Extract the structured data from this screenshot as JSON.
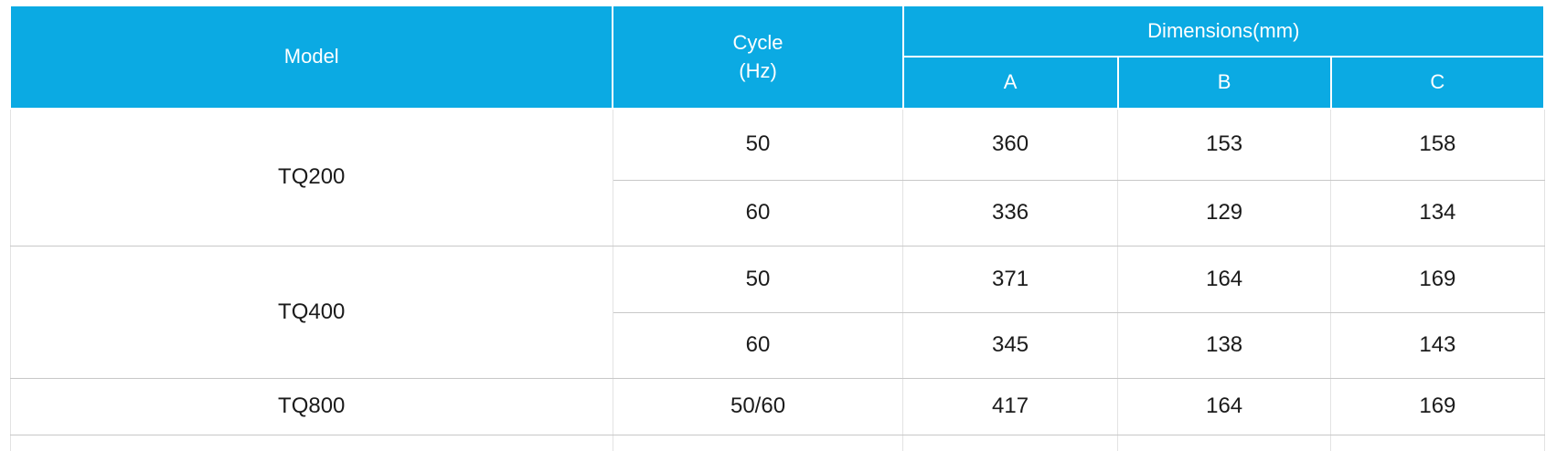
{
  "table": {
    "header": {
      "model": "Model",
      "cycle_line1": "Cycle",
      "cycle_line2": "(Hz)",
      "dimensions": "Dimensions(mm)",
      "dim_a": "A",
      "dim_b": "B",
      "dim_c": "C"
    },
    "groups": [
      {
        "model": "TQ200",
        "rows": [
          {
            "cycle": "50",
            "a": "360",
            "b": "153",
            "c": "158"
          },
          {
            "cycle": "60",
            "a": "336",
            "b": "129",
            "c": "134"
          }
        ]
      },
      {
        "model": "TQ400",
        "rows": [
          {
            "cycle": "50",
            "a": "371",
            "b": "164",
            "c": "169"
          },
          {
            "cycle": "60",
            "a": "345",
            "b": "138",
            "c": "143"
          }
        ]
      },
      {
        "model": "TQ800",
        "rows": [
          {
            "cycle": "50/60",
            "a": "417",
            "b": "164",
            "c": "169"
          }
        ]
      }
    ],
    "colors": {
      "header_bg": "#0baae3",
      "header_text": "#ffffff",
      "body_text": "#1b1b1b"
    }
  }
}
